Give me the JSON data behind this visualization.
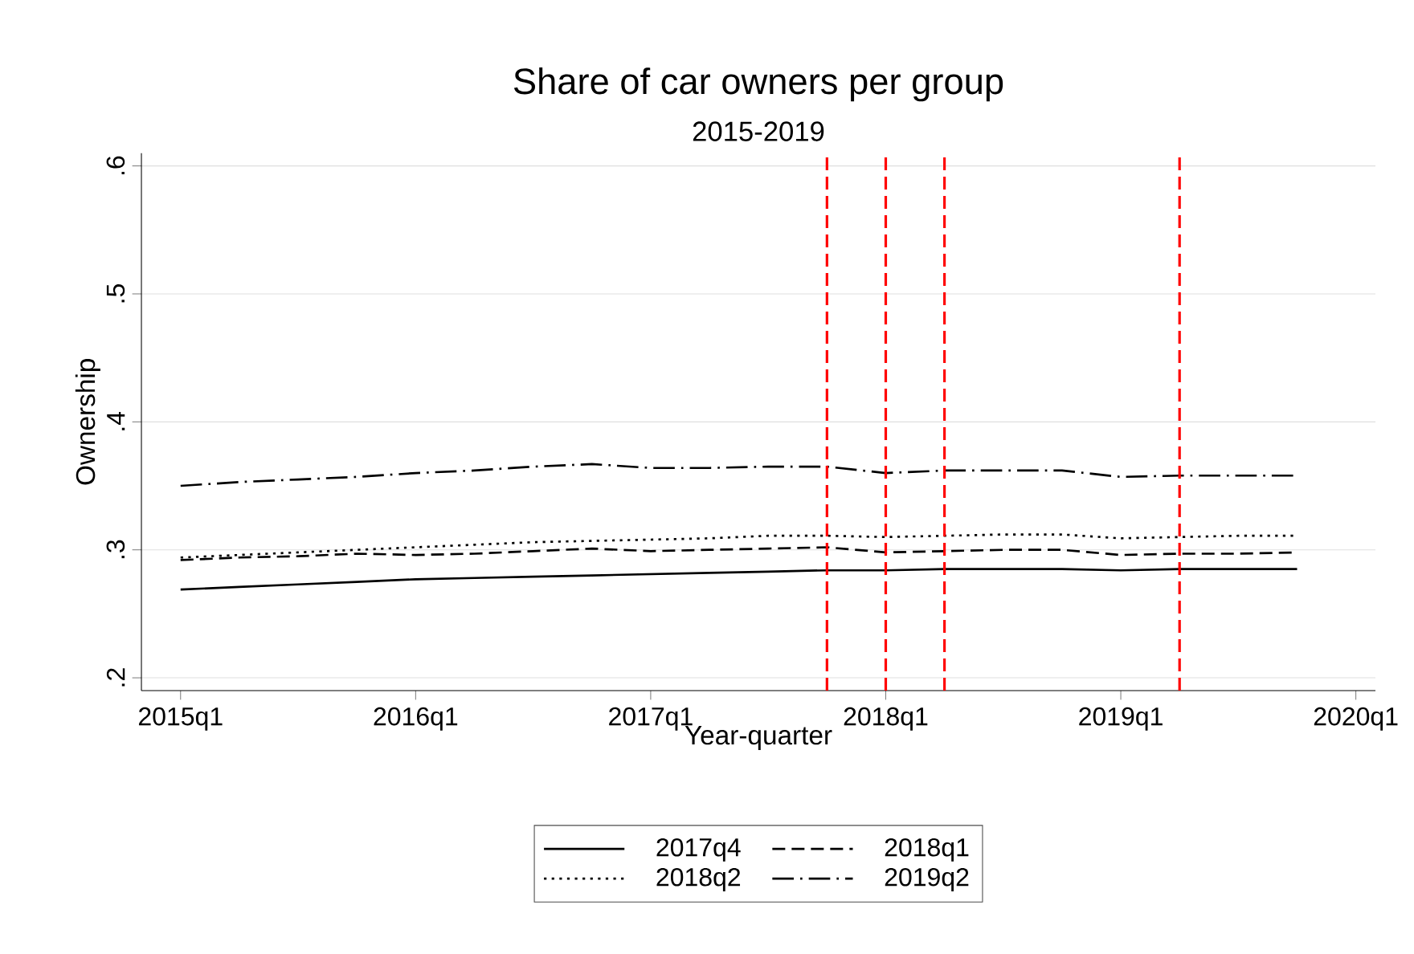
{
  "chart_data": {
    "type": "line",
    "title": "Share of car owners per group",
    "subtitle": "2015-2019",
    "xlabel": "Year-quarter",
    "ylabel": "Ownership",
    "x": [
      "2015-01",
      "2015-04",
      "2015-07",
      "2015-10",
      "2016-01",
      "2016-04",
      "2016-07",
      "2016-10",
      "2017-01",
      "2017-04",
      "2017-07",
      "2017-10",
      "2018-01",
      "2018-04",
      "2018-07",
      "2018-10",
      "2019-01",
      "2019-04",
      "2019-07",
      "2019-10"
    ],
    "series": [
      {
        "name": "2017q4",
        "color": "#000000",
        "line_style": "solid",
        "values": [
          0.269,
          0.271,
          0.273,
          0.275,
          0.277,
          0.278,
          0.279,
          0.28,
          0.281,
          0.282,
          0.283,
          0.284,
          0.284,
          0.285,
          0.285,
          0.285,
          0.284,
          0.285,
          0.285,
          0.285
        ]
      },
      {
        "name": "2018q1",
        "color": "#000000",
        "line_style": "dashed",
        "values": [
          0.292,
          0.294,
          0.295,
          0.297,
          0.296,
          0.297,
          0.299,
          0.301,
          0.299,
          0.3,
          0.301,
          0.302,
          0.298,
          0.299,
          0.3,
          0.3,
          0.296,
          0.297,
          0.297,
          0.298
        ]
      },
      {
        "name": "2018q2",
        "color": "#000000",
        "line_style": "dotted",
        "values": [
          0.294,
          0.296,
          0.298,
          0.3,
          0.302,
          0.304,
          0.306,
          0.307,
          0.308,
          0.309,
          0.311,
          0.311,
          0.31,
          0.311,
          0.312,
          0.312,
          0.309,
          0.31,
          0.311,
          0.311
        ]
      },
      {
        "name": "2019q2",
        "color": "#000000",
        "line_style": "dashdotted",
        "values": [
          0.35,
          0.353,
          0.355,
          0.357,
          0.36,
          0.362,
          0.365,
          0.367,
          0.364,
          0.364,
          0.365,
          0.365,
          0.36,
          0.362,
          0.362,
          0.362,
          0.357,
          0.358,
          0.358,
          0.358
        ]
      }
    ],
    "xlim": [
      "2014-11",
      "2020-02"
    ],
    "ylim": [
      0.19,
      0.61
    ],
    "xticks": [
      {
        "value": "2015-01",
        "label": "2015q1"
      },
      {
        "value": "2016-01",
        "label": "2016q1"
      },
      {
        "value": "2017-01",
        "label": "2017q1"
      },
      {
        "value": "2018-01",
        "label": "2018q1"
      },
      {
        "value": "2019-01",
        "label": "2019q1"
      },
      {
        "value": "2020-01",
        "label": "2020q1"
      }
    ],
    "yticks": [
      {
        "value": 0.2,
        "label": ".2"
      },
      {
        "value": 0.3,
        "label": ".3"
      },
      {
        "value": 0.4,
        "label": ".4"
      },
      {
        "value": 0.5,
        "label": ".5"
      },
      {
        "value": 0.6,
        "label": ".6"
      }
    ],
    "ref_lines": [
      {
        "axis": "x",
        "value": "2017-10",
        "color": "#ff0000",
        "line_style": "dashed"
      },
      {
        "axis": "x",
        "value": "2018-01",
        "color": "#ff0000",
        "line_style": "dashed"
      },
      {
        "axis": "x",
        "value": "2018-04",
        "color": "#ff0000",
        "line_style": "dashed"
      },
      {
        "axis": "x",
        "value": "2019-04",
        "color": "#ff0000",
        "line_style": "dashed"
      }
    ],
    "grid": "y",
    "legend": "bottom",
    "marker": "none"
  }
}
